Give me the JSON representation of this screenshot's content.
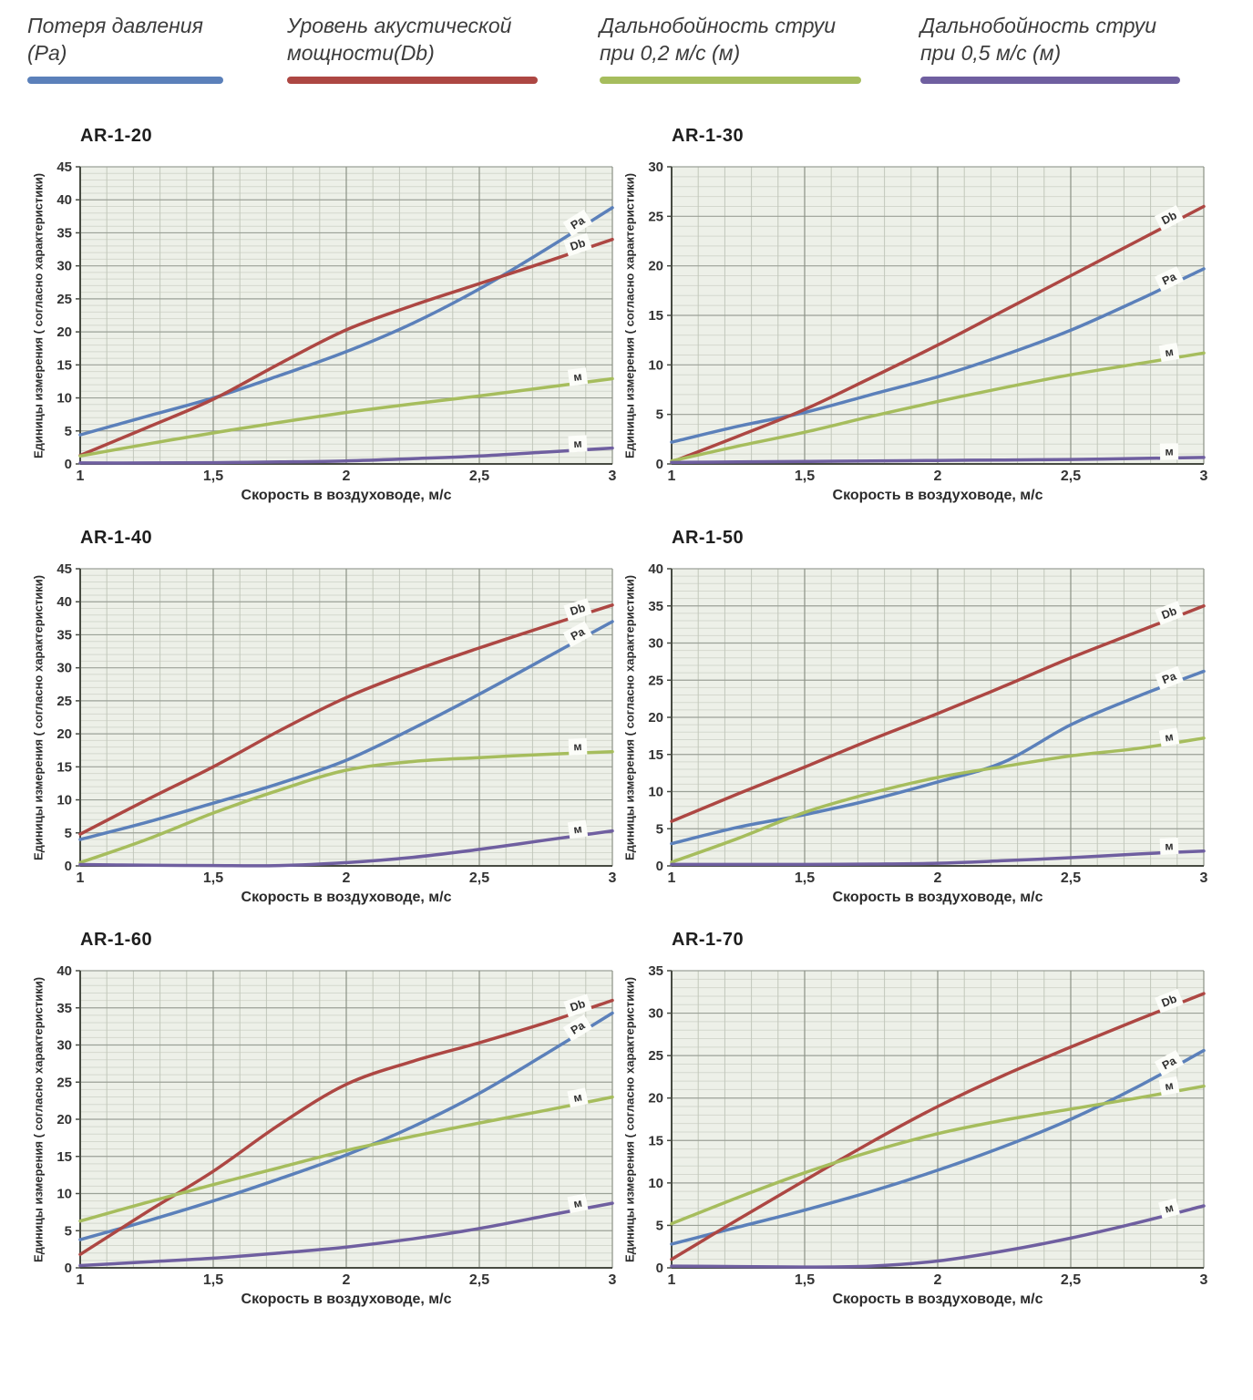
{
  "legend": {
    "items": [
      {
        "label": "Потеря давления\n(Pa)",
        "color": "#5b80ba"
      },
      {
        "label": "Уровень акустической\nмощности(Db)",
        "color": "#ad4743"
      },
      {
        "label": "Дальнобойность струи\nпри 0,2 м/с (м)",
        "color": "#a6bd5d"
      },
      {
        "label": "Дальнобойность струи\nпри 0,5 м/с (м)",
        "color": "#6f5fa0"
      }
    ]
  },
  "shared": {
    "x_tick_values": [
      1,
      1.5,
      2,
      2.5,
      3
    ],
    "x_tick_labels": [
      "1",
      "1,5",
      "2",
      "2,5",
      "3"
    ]
  },
  "chart_data": [
    {
      "type": "line",
      "title": "AR-1-20",
      "xlabel": "Скорость в воздуховоде, м/с",
      "ylabel": "Единицы измерения ( согласно характеристики)",
      "xlim": [
        1,
        3
      ],
      "ylim": [
        0,
        45
      ],
      "x_tick_step": 0.5,
      "x_minor_step": 0.1,
      "y_tick_step": 5,
      "y_minor_step": 1,
      "x": [
        1,
        1.25,
        1.5,
        1.75,
        2,
        2.25,
        2.5,
        2.75,
        3
      ],
      "series": [
        {
          "name": "Потеря давления (Pa)",
          "label": "Pa",
          "color": "#5b80ba",
          "values": [
            4.4,
            7.2,
            10,
            13.4,
            17,
            21.3,
            26.5,
            32.5,
            38.8
          ]
        },
        {
          "name": "Уровень акустической мощности (Db)",
          "label": "Db",
          "color": "#ad4743",
          "values": [
            1.3,
            5.5,
            9.8,
            15.2,
            20.3,
            24,
            27.3,
            30.6,
            34
          ]
        },
        {
          "name": "Дальнобойность струи при 0,2 м/с (м)",
          "label": "м",
          "color": "#a6bd5d",
          "values": [
            1.2,
            3,
            4.7,
            6.3,
            7.8,
            9.1,
            10.3,
            11.6,
            12.9
          ]
        },
        {
          "name": "Дальнобойность струи при 0,5 м/с (м)",
          "label": "м",
          "color": "#6f5fa0",
          "values": [
            0.15,
            0.15,
            0.2,
            0.3,
            0.45,
            0.8,
            1.2,
            1.8,
            2.4
          ]
        }
      ]
    },
    {
      "type": "line",
      "title": "AR-1-30",
      "xlabel": "Скорость в воздуховоде, м/с",
      "ylabel": "Единицы измерения ( согласно характеристики)",
      "xlim": [
        1,
        3
      ],
      "ylim": [
        0,
        30
      ],
      "x_tick_step": 0.5,
      "x_minor_step": 0.1,
      "y_tick_step": 5,
      "y_minor_step": 1,
      "x": [
        1,
        1.25,
        1.5,
        1.75,
        2,
        2.25,
        2.5,
        2.75,
        3
      ],
      "series": [
        {
          "name": "Потеря давления (Pa)",
          "label": "Pa",
          "color": "#5b80ba",
          "values": [
            2.2,
            3.8,
            5.2,
            7,
            8.8,
            11,
            13.5,
            16.5,
            19.7
          ]
        },
        {
          "name": "Уровень акустической мощности (Db)",
          "label": "Db",
          "color": "#ad4743",
          "values": [
            0.2,
            2.8,
            5.5,
            8.7,
            12,
            15.5,
            19,
            22.5,
            26
          ]
        },
        {
          "name": "Дальнобойность струи при 0,2 м/с (м)",
          "label": "м",
          "color": "#a6bd5d",
          "values": [
            0.3,
            1.8,
            3.2,
            4.8,
            6.3,
            7.7,
            9,
            10.1,
            11.2
          ]
        },
        {
          "name": "Дальнобойность струи при 0,5 м/с (м)",
          "label": "м",
          "color": "#6f5fa0",
          "values": [
            0.15,
            0.2,
            0.25,
            0.3,
            0.35,
            0.4,
            0.45,
            0.55,
            0.65
          ]
        }
      ]
    },
    {
      "type": "line",
      "title": "AR-1-40",
      "xlabel": "Скорость в воздуховоде, м/с",
      "ylabel": "Единицы измерения ( согласно характеристики)",
      "xlim": [
        1,
        3
      ],
      "ylim": [
        0,
        45
      ],
      "x_tick_step": 0.5,
      "x_minor_step": 0.1,
      "y_tick_step": 5,
      "y_minor_step": 1,
      "x": [
        1,
        1.25,
        1.5,
        1.75,
        2,
        2.25,
        2.5,
        2.75,
        3
      ],
      "series": [
        {
          "name": "Потеря давления (Pa)",
          "label": "Pa",
          "color": "#5b80ba",
          "values": [
            4,
            6.6,
            9.5,
            12.5,
            16,
            20.8,
            26,
            31.5,
            37
          ]
        },
        {
          "name": "Уровень акустической мощности (Db)",
          "label": "Db",
          "color": "#ad4743",
          "values": [
            4.8,
            10,
            15,
            20.5,
            25.5,
            29.5,
            33,
            36.3,
            39.5
          ]
        },
        {
          "name": "Дальнобойность струи при 0,2 м/с (м)",
          "label": "м",
          "color": "#a6bd5d",
          "values": [
            0.5,
            4,
            8,
            11.5,
            14.5,
            15.8,
            16.4,
            16.9,
            17.3
          ]
        },
        {
          "name": "Дальнобойность струи при 0,5 м/с (м)",
          "label": "м",
          "color": "#6f5fa0",
          "values": [
            0.2,
            0.1,
            0.05,
            0.05,
            0.5,
            1.3,
            2.5,
            3.9,
            5.3
          ]
        }
      ]
    },
    {
      "type": "line",
      "title": "AR-1-50",
      "xlabel": "Скорость в воздуховоде, м/с",
      "ylabel": "Единицы измерения ( согласно характеристики)",
      "xlim": [
        1,
        3
      ],
      "ylim": [
        0,
        40
      ],
      "x_tick_step": 0.5,
      "x_minor_step": 0.1,
      "y_tick_step": 5,
      "y_minor_step": 1,
      "x": [
        1,
        1.25,
        1.5,
        1.75,
        2,
        2.25,
        2.5,
        2.75,
        3
      ],
      "series": [
        {
          "name": "Потеря давления (Pa)",
          "label": "Pa",
          "color": "#5b80ba",
          "values": [
            3,
            5.2,
            6.9,
            8.9,
            11.3,
            14,
            19,
            22.8,
            26.2
          ]
        },
        {
          "name": "Уровень акустической мощности (Db)",
          "label": "Db",
          "color": "#ad4743",
          "values": [
            6,
            9.7,
            13.3,
            17,
            20.5,
            24.2,
            28,
            31.5,
            35
          ]
        },
        {
          "name": "Дальнобойность струи при 0,2 м/с (м)",
          "label": "м",
          "color": "#a6bd5d",
          "values": [
            0.5,
            3.7,
            7.2,
            9.8,
            11.9,
            13.4,
            14.8,
            15.8,
            17.2
          ]
        },
        {
          "name": "Дальнобойность струи при 0,5 м/с (м)",
          "label": "м",
          "color": "#6f5fa0",
          "values": [
            0.2,
            0.2,
            0.2,
            0.25,
            0.35,
            0.7,
            1.1,
            1.6,
            2
          ]
        }
      ]
    },
    {
      "type": "line",
      "title": "AR-1-60",
      "xlabel": "Скорость в воздуховоде, м/с",
      "ylabel": "Единицы измерения ( согласно характеристики)",
      "xlim": [
        1,
        3
      ],
      "ylim": [
        0,
        40
      ],
      "x_tick_step": 0.5,
      "x_minor_step": 0.1,
      "y_tick_step": 5,
      "y_minor_step": 1,
      "x": [
        1,
        1.25,
        1.5,
        1.75,
        2,
        2.25,
        2.5,
        2.75,
        3
      ],
      "series": [
        {
          "name": "Потеря давления (Pa)",
          "label": "Pa",
          "color": "#5b80ba",
          "values": [
            3.8,
            6.3,
            9,
            12,
            15.2,
            19,
            23.5,
            28.8,
            34.3
          ]
        },
        {
          "name": "Уровень акустической мощности (Db)",
          "label": "Db",
          "color": "#ad4743",
          "values": [
            1.8,
            7.5,
            13,
            19.3,
            24.7,
            27.8,
            30.3,
            33,
            36
          ]
        },
        {
          "name": "Дальнобойность струи при 0,2 м/с (м)",
          "label": "м",
          "color": "#a6bd5d",
          "values": [
            6.3,
            8.8,
            11.2,
            13.5,
            15.8,
            17.7,
            19.5,
            21.2,
            23
          ]
        },
        {
          "name": "Дальнобойность струи при 0,5 м/с (м)",
          "label": "м",
          "color": "#6f5fa0",
          "values": [
            0.3,
            0.8,
            1.3,
            2,
            2.8,
            3.9,
            5.3,
            7,
            8.7
          ]
        }
      ]
    },
    {
      "type": "line",
      "title": "AR-1-70",
      "xlabel": "Скорость в воздуховоде, м/с",
      "ylabel": "Единицы измерения ( согласно характеристики)",
      "xlim": [
        1,
        3
      ],
      "ylim": [
        0,
        35
      ],
      "x_tick_step": 0.5,
      "x_minor_step": 0.1,
      "y_tick_step": 5,
      "y_minor_step": 1,
      "x": [
        1,
        1.25,
        1.5,
        1.75,
        2,
        2.25,
        2.5,
        2.75,
        3
      ],
      "series": [
        {
          "name": "Потеря давления (Pa)",
          "label": "Pa",
          "color": "#5b80ba",
          "values": [
            2.8,
            4.8,
            6.8,
            9,
            11.5,
            14.3,
            17.5,
            21.3,
            25.6
          ]
        },
        {
          "name": "Уровень акустической мощности (Db)",
          "label": "Db",
          "color": "#ad4743",
          "values": [
            1,
            5.7,
            10.3,
            14.8,
            19,
            22.7,
            26,
            29.2,
            32.3
          ]
        },
        {
          "name": "Дальнобойность струи при 0,2 м/с (м)",
          "label": "м",
          "color": "#a6bd5d",
          "values": [
            5.2,
            8.3,
            11.2,
            13.7,
            15.8,
            17.4,
            18.7,
            20,
            21.4
          ]
        },
        {
          "name": "Дальнобойность струи при 0,5 м/с (м)",
          "label": "м",
          "color": "#6f5fa0",
          "values": [
            0.2,
            0.15,
            0.1,
            0.2,
            0.8,
            2,
            3.5,
            5.3,
            7.3
          ]
        }
      ]
    }
  ],
  "style": {
    "plot_bg": "#edf0e8",
    "grid_minor_h": "#d4d8ce",
    "grid_minor_v": "#c2c7bb",
    "grid_major_h": "#9ba197",
    "grid_major_v": "#8b9186",
    "axis": "#474b42",
    "tick_text": "#333333",
    "label_box": "#fcfdf9"
  }
}
